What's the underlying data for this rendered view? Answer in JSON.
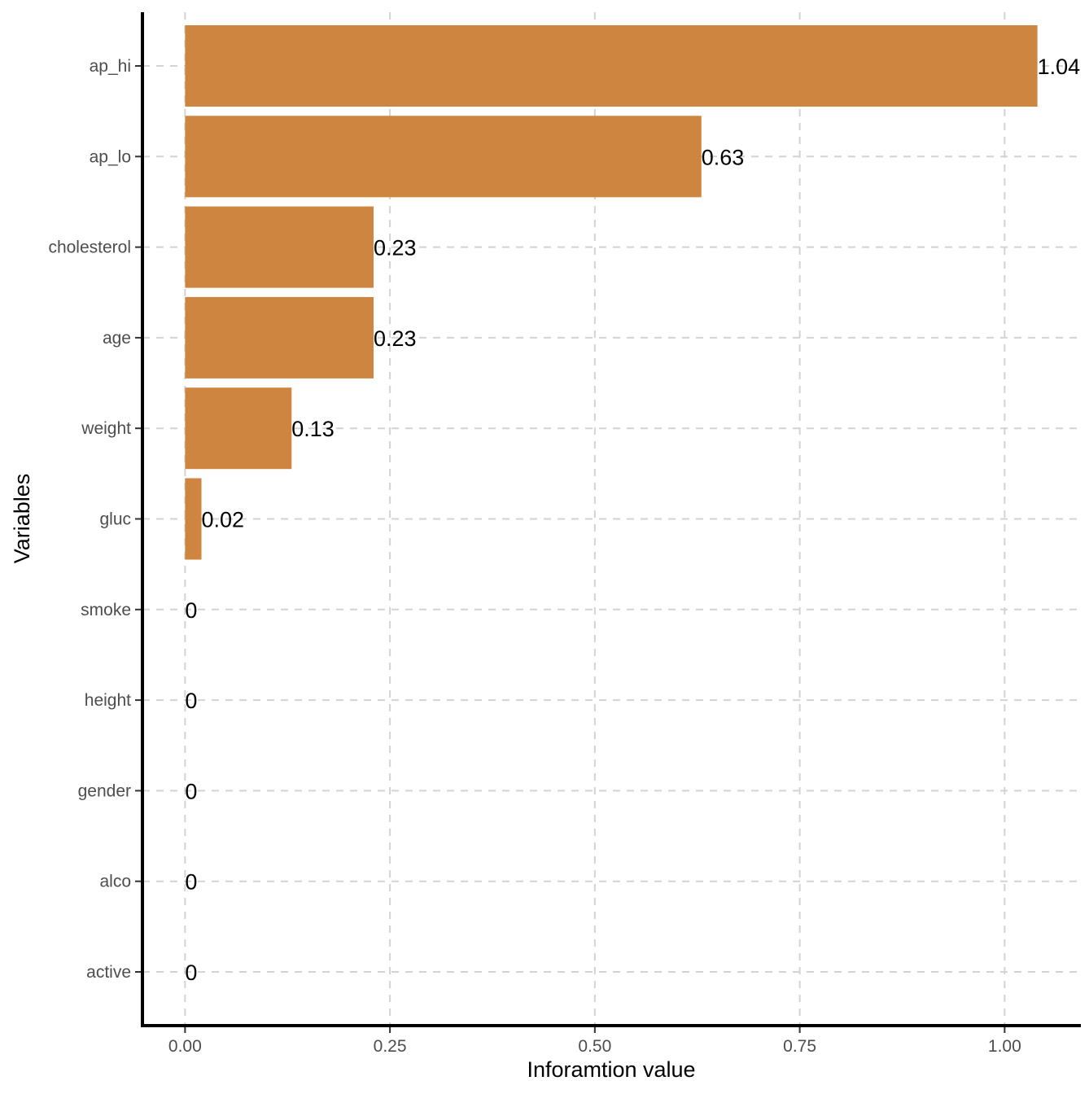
{
  "chart_data": {
    "type": "bar",
    "orientation": "horizontal",
    "categories": [
      "ap_hi",
      "ap_lo",
      "cholesterol",
      "age",
      "weight",
      "gluc",
      "smoke",
      "height",
      "gender",
      "alco",
      "active"
    ],
    "values": [
      1.04,
      0.63,
      0.23,
      0.23,
      0.13,
      0.02,
      0,
      0,
      0,
      0,
      0
    ],
    "data_labels": [
      "1.04",
      "0.63",
      "0.23",
      "0.23",
      "0.13",
      "0.02",
      "0",
      "0",
      "0",
      "0",
      "0"
    ],
    "xlabel": "Inforamtion value",
    "ylabel": "Variables",
    "x_ticks": [
      0,
      0.25,
      0.5,
      0.75,
      1
    ],
    "x_tick_labels": [
      "0.00",
      "0.25",
      "0.50",
      "0.75",
      "1.00"
    ],
    "xlim": [
      -0.052,
      1.093
    ],
    "grid": true,
    "bar_color": "#CD853F"
  }
}
